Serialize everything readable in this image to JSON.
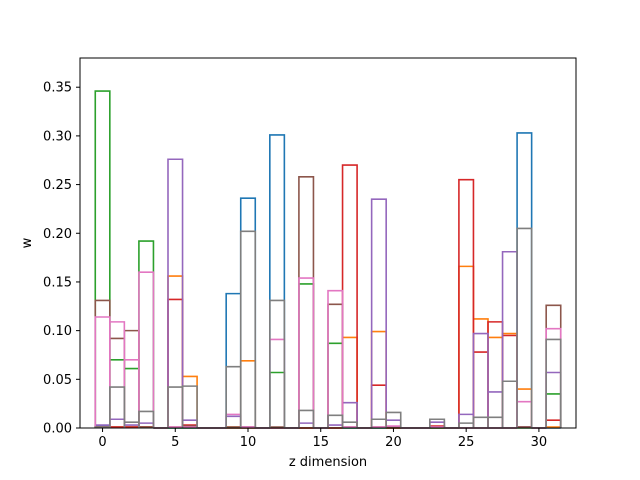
{
  "chart_data": {
    "type": "step",
    "xlabel": "z dimension",
    "ylabel": "w",
    "xlim": [
      -1.55,
      32.55
    ],
    "ylim": [
      0,
      0.38
    ],
    "x_ticks": [
      0,
      5,
      10,
      15,
      20,
      25,
      30
    ],
    "x_tick_labels": [
      "0",
      "5",
      "10",
      "15",
      "20",
      "25",
      "30"
    ],
    "y_ticks": [
      0.0,
      0.05,
      0.1,
      0.15,
      0.2,
      0.25,
      0.3,
      0.35
    ],
    "y_tick_labels": [
      "0.00",
      "0.05",
      "0.10",
      "0.15",
      "0.20",
      "0.25",
      "0.30",
      "0.35"
    ],
    "grid": false,
    "bins": [
      0,
      1,
      2,
      3,
      4,
      5,
      6,
      7,
      8,
      9,
      10,
      11,
      12,
      13,
      14,
      15,
      16,
      17,
      18,
      19,
      20,
      21,
      22,
      23,
      24,
      25,
      26,
      27,
      28,
      29,
      30,
      31
    ],
    "series": [
      {
        "color": "#1f77b4",
        "values": [
          0.002,
          0.001,
          0.001,
          0.001,
          0,
          0,
          0,
          0,
          0,
          0.138,
          0.236,
          0,
          0.301,
          0,
          0,
          0,
          0,
          0,
          0,
          0,
          0,
          0,
          0,
          0,
          0,
          0,
          0,
          0,
          0,
          0.303,
          0,
          0
        ]
      },
      {
        "color": "#ff7f0e",
        "values": [
          0.001,
          0.001,
          0.001,
          0.001,
          0,
          0.156,
          0.053,
          0,
          0,
          0.001,
          0.069,
          0,
          0,
          0,
          0,
          0,
          0,
          0.093,
          0,
          0.099,
          0,
          0,
          0,
          0,
          0,
          0.166,
          0.112,
          0.093,
          0.097,
          0.04,
          0,
          0.001
        ]
      },
      {
        "color": "#2ca02c",
        "values": [
          0.346,
          0.07,
          0.061,
          0.192,
          0,
          0,
          0,
          0,
          0,
          0,
          0,
          0,
          0.057,
          0,
          0.148,
          0,
          0.087,
          0,
          0,
          0,
          0,
          0,
          0,
          0,
          0,
          0,
          0,
          0,
          0,
          0,
          0,
          0.035
        ]
      },
      {
        "color": "#d62728",
        "values": [
          0.001,
          0.001,
          0.001,
          0.001,
          0,
          0.132,
          0.003,
          0,
          0,
          0,
          0,
          0,
          0,
          0,
          0,
          0,
          0,
          0.27,
          0,
          0.044,
          0,
          0,
          0,
          0.002,
          0,
          0.255,
          0.078,
          0.109,
          0.095,
          0.001,
          0,
          0.008
        ]
      },
      {
        "color": "#9467bd",
        "values": [
          0.003,
          0.009,
          0.003,
          0.005,
          0,
          0.276,
          0.008,
          0,
          0,
          0.012,
          0.001,
          0,
          0,
          0,
          0.005,
          0,
          0.003,
          0.026,
          0,
          0.235,
          0.008,
          0,
          0,
          0.006,
          0,
          0.014,
          0.097,
          0.037,
          0.181,
          0.001,
          0,
          0.057
        ]
      },
      {
        "color": "#8c564b",
        "values": [
          0.131,
          0.092,
          0.1,
          0.001,
          0,
          0.001,
          0.002,
          0,
          0,
          0.001,
          0.001,
          0,
          0.001,
          0,
          0.258,
          0,
          0.127,
          0.001,
          0,
          0.001,
          0.001,
          0,
          0,
          0.001,
          0,
          0,
          0,
          0,
          0,
          0.001,
          0,
          0.126
        ]
      },
      {
        "color": "#e377c2",
        "values": [
          0.114,
          0.109,
          0.07,
          0.16,
          0,
          0.001,
          0.001,
          0,
          0,
          0.014,
          0.001,
          0,
          0.091,
          0,
          0.154,
          0,
          0.141,
          0.001,
          0,
          0.001,
          0.002,
          0,
          0,
          0.001,
          0,
          0,
          0,
          0,
          0,
          0.027,
          0,
          0.102
        ]
      },
      {
        "color": "#7f7f7f",
        "values": [
          0.001,
          0.042,
          0.006,
          0.017,
          0,
          0.042,
          0.043,
          0,
          0,
          0.063,
          0.202,
          0,
          0.131,
          0,
          0.018,
          0,
          0.013,
          0.006,
          0,
          0.009,
          0.016,
          0,
          0,
          0.009,
          0,
          0.005,
          0.011,
          0.011,
          0.048,
          0.205,
          0,
          0.091
        ]
      }
    ]
  }
}
